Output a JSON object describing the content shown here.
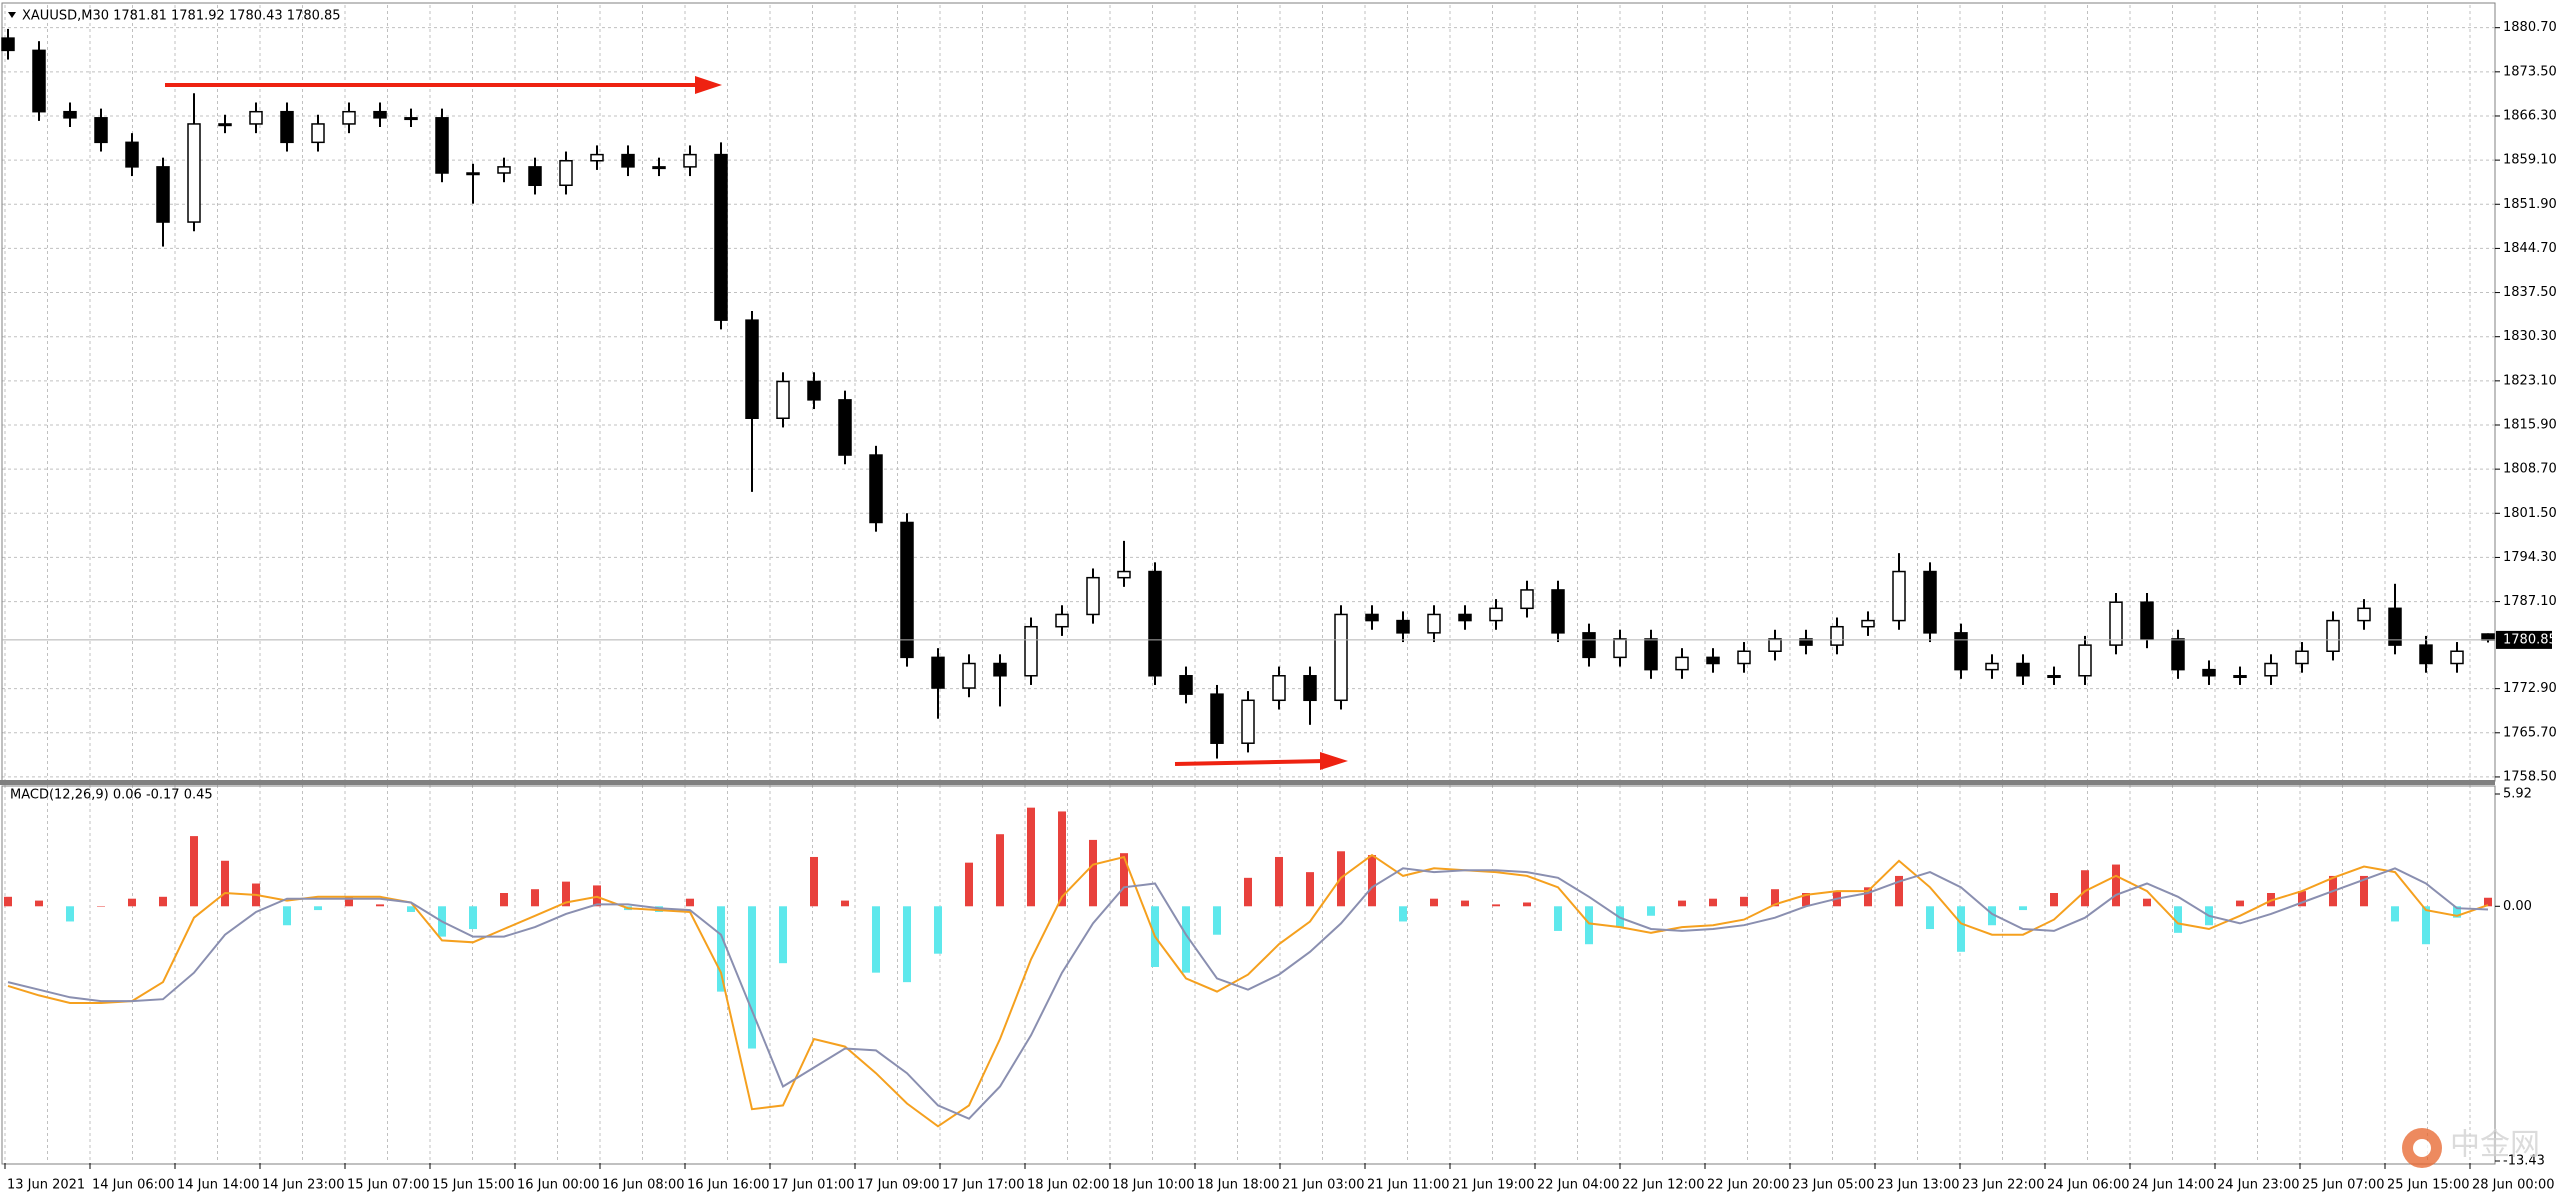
{
  "chart_data": [
    {
      "type": "candlestick",
      "title": "XAUUSD,M30  1781.81 1781.92 1780.43 1780.85",
      "candle_color": "#000000",
      "bull_fill": "#ffffff",
      "open": [
        1879,
        1877,
        1867,
        1866,
        1862,
        1858,
        1849,
        1865,
        1865,
        1867,
        1862,
        1865,
        1867,
        1866,
        1866,
        1857,
        1857,
        1858,
        1855,
        1859,
        1860,
        1858,
        1858,
        1860,
        1833,
        1817,
        1823,
        1820,
        1811,
        1800,
        1778,
        1773,
        1777,
        1775,
        1783,
        1785,
        1791,
        1792,
        1775,
        1772,
        1764,
        1771,
        1775,
        1771,
        1785,
        1784,
        1782,
        1785,
        1784,
        1786,
        1789,
        1782,
        1778,
        1781,
        1776,
        1778,
        1777,
        1779,
        1781,
        1780,
        1783,
        1784,
        1792,
        1782,
        1776,
        1777,
        1775,
        1775,
        1780,
        1787,
        1781,
        1776,
        1775,
        1775,
        1777,
        1779,
        1784,
        1786,
        1780,
        1777,
        1781.81
      ],
      "high": [
        1880.5,
        1878.5,
        1868.5,
        1867.5,
        1863.5,
        1859.5,
        1870,
        1866.5,
        1868.5,
        1868.5,
        1866.5,
        1868.5,
        1868.5,
        1867.5,
        1867.5,
        1858.5,
        1859.5,
        1859.5,
        1860.5,
        1861.5,
        1861.5,
        1859.5,
        1861.5,
        1862,
        1834.5,
        1824.5,
        1824.5,
        1821.5,
        1812.5,
        1801.5,
        1779.5,
        1778.5,
        1778.5,
        1784.5,
        1786.5,
        1792.5,
        1797,
        1793.5,
        1776.5,
        1773.5,
        1772.5,
        1776.5,
        1776.5,
        1786.5,
        1786.5,
        1785.5,
        1786.5,
        1786.5,
        1787.5,
        1790.5,
        1790.5,
        1783.5,
        1782.5,
        1782.5,
        1779.5,
        1779.5,
        1780.5,
        1782.5,
        1782.5,
        1784.5,
        1785.5,
        1795,
        1793.5,
        1783.5,
        1778.5,
        1778.5,
        1776.5,
        1781.5,
        1788.5,
        1788.5,
        1782.5,
        1777.5,
        1776.5,
        1778.5,
        1780.5,
        1785.5,
        1787.5,
        1790,
        1781.5,
        1780.5,
        1781.92
      ],
      "low": [
        1875.5,
        1865.5,
        1864.5,
        1860.5,
        1856.5,
        1845,
        1847.5,
        1863.5,
        1863.5,
        1860.5,
        1860.5,
        1863.5,
        1864.5,
        1864.5,
        1855.5,
        1852,
        1855.5,
        1853.5,
        1853.5,
        1857.5,
        1856.5,
        1856.5,
        1856.5,
        1831.5,
        1805,
        1815.5,
        1818.5,
        1809.5,
        1798.5,
        1776.5,
        1768,
        1771.5,
        1770,
        1773.5,
        1781.5,
        1783.5,
        1789.5,
        1773.5,
        1770.5,
        1761.5,
        1762.5,
        1769.5,
        1767,
        1769.5,
        1782.5,
        1780.5,
        1780.5,
        1782.5,
        1782.5,
        1784.5,
        1780.5,
        1776.5,
        1776.5,
        1774.5,
        1774.5,
        1775.5,
        1775.5,
        1777.5,
        1778.5,
        1778.5,
        1781.5,
        1782.5,
        1780.5,
        1774.5,
        1774.5,
        1773.5,
        1773.5,
        1773.5,
        1778.5,
        1779.5,
        1774.5,
        1773.5,
        1773.5,
        1773.5,
        1775.5,
        1777.5,
        1782.5,
        1778.5,
        1775.5,
        1775.5,
        1780.43
      ],
      "close": [
        1877,
        1867,
        1866,
        1862,
        1858,
        1849,
        1865,
        1865,
        1867,
        1862,
        1865,
        1867,
        1866,
        1866,
        1857,
        1857,
        1858,
        1855,
        1859,
        1860,
        1858,
        1858,
        1860,
        1833,
        1817,
        1823,
        1820,
        1811,
        1800,
        1778,
        1773,
        1777,
        1775,
        1783,
        1785,
        1791,
        1792,
        1775,
        1772,
        1764,
        1771,
        1775,
        1771,
        1785,
        1784,
        1782,
        1785,
        1784,
        1786,
        1789,
        1782,
        1778,
        1781,
        1776,
        1778,
        1777,
        1779,
        1781,
        1780,
        1783,
        1784,
        1792,
        1782,
        1776,
        1777,
        1775,
        1775,
        1780,
        1787,
        1781,
        1776,
        1775,
        1775,
        1777,
        1779,
        1784,
        1786,
        1780,
        1777,
        1779,
        1780.85
      ],
      "last_price": 1780.85,
      "ylim": [
        1758.0,
        1884.4
      ],
      "yticks": [
        {
          "value": 1880.7,
          "label": "1880.70"
        },
        {
          "value": 1873.5,
          "label": "1873.50"
        },
        {
          "value": 1866.3,
          "label": "1866.30"
        },
        {
          "value": 1859.1,
          "label": "1859.10"
        },
        {
          "value": 1851.9,
          "label": "1851.90"
        },
        {
          "value": 1844.7,
          "label": "1844.70"
        },
        {
          "value": 1837.5,
          "label": "1837.50"
        },
        {
          "value": 1830.3,
          "label": "1830.30"
        },
        {
          "value": 1823.1,
          "label": "1823.10"
        },
        {
          "value": 1815.9,
          "label": "1815.90"
        },
        {
          "value": 1808.7,
          "label": "1808.70"
        },
        {
          "value": 1801.5,
          "label": "1801.50"
        },
        {
          "value": 1794.3,
          "label": "1794.30"
        },
        {
          "value": 1787.1,
          "label": "1787.10"
        },
        {
          "value": 1772.9,
          "label": "1772.90"
        },
        {
          "value": 1765.7,
          "label": "1765.70"
        },
        {
          "value": 1758.5,
          "label": "1758.50"
        }
      ],
      "grid": true,
      "time_labels": [
        "13 Jun 2021",
        "14 Jun 06:00",
        "14 Jun 14:00",
        "14 Jun 23:00",
        "15 Jun 07:00",
        "15 Jun 15:00",
        "16 Jun 00:00",
        "16 Jun 08:00",
        "16 Jun 16:00",
        "17 Jun 01:00",
        "17 Jun 09:00",
        "17 Jun 17:00",
        "18 Jun 02:00",
        "18 Jun 10:00",
        "18 Jun 18:00",
        "21 Jun 03:00",
        "21 Jun 11:00",
        "21 Jun 19:00",
        "22 Jun 04:00",
        "22 Jun 12:00",
        "22 Jun 20:00",
        "23 Jun 05:00",
        "23 Jun 13:00",
        "23 Jun 22:00",
        "24 Jun 06:00",
        "24 Jun 14:00",
        "24 Jun 23:00",
        "25 Jun 07:00",
        "25 Jun 15:00",
        "28 Jun 00:00"
      ],
      "watermark": "中金网"
    },
    {
      "type": "macd",
      "title": "MACD(12,26,9) 0.06 -0.17 0.45",
      "histogram": [
        0.5,
        0.3,
        -0.8,
        0.0,
        0.4,
        0.5,
        3.7,
        2.4,
        1.2,
        -1.0,
        -0.2,
        0.5,
        0.1,
        -0.3,
        -1.6,
        -1.2,
        0.7,
        0.9,
        1.3,
        1.1,
        -0.2,
        -0.3,
        0.4,
        -4.5,
        -7.5,
        -3.0,
        2.6,
        0.3,
        -3.5,
        -4.0,
        -2.5,
        2.3,
        3.8,
        5.2,
        5.0,
        3.5,
        2.8,
        -3.2,
        -3.5,
        -1.5,
        1.5,
        2.6,
        1.8,
        2.9,
        2.7,
        -0.8,
        0.4,
        0.3,
        0.1,
        0.2,
        -1.3,
        -2.0,
        -1.1,
        -0.5,
        0.3,
        0.4,
        0.5,
        0.9,
        0.7,
        0.8,
        1.0,
        1.6,
        -1.2,
        -2.4,
        -1.0,
        -0.2,
        0.7,
        1.9,
        2.2,
        0.4,
        -1.4,
        -1.0,
        0.3,
        0.7,
        0.8,
        1.6,
        1.6,
        -0.8,
        -2.0,
        -0.6,
        0.45
      ],
      "up_color": "#e8413c",
      "down_color": "#5ee8ec",
      "series": [
        {
          "name": "MACD",
          "color": "#f5a01e",
          "values": [
            -4.2,
            -4.7,
            -5.1,
            -5.1,
            -5.0,
            -4.0,
            -0.6,
            0.7,
            0.6,
            0.3,
            0.5,
            0.5,
            0.5,
            0.2,
            -1.8,
            -1.9,
            -1.2,
            -0.5,
            0.2,
            0.5,
            -0.1,
            -0.2,
            -0.3,
            -3.5,
            -10.7,
            -10.5,
            -7.0,
            -7.4,
            -8.8,
            -10.4,
            -11.6,
            -10.5,
            -7.0,
            -2.8,
            0.5,
            2.2,
            2.6,
            -1.6,
            -3.8,
            -4.5,
            -3.6,
            -2.0,
            -0.8,
            1.5,
            2.7,
            1.6,
            2.0,
            1.9,
            1.8,
            1.6,
            1.0,
            -0.9,
            -1.1,
            -1.4,
            -1.1,
            -1.0,
            -0.7,
            0.1,
            0.6,
            0.8,
            0.8,
            2.4,
            1.0,
            -0.9,
            -1.5,
            -1.5,
            -0.7,
            0.8,
            1.6,
            0.8,
            -0.9,
            -1.2,
            -0.5,
            0.3,
            0.8,
            1.5,
            2.1,
            1.8,
            -0.2,
            -0.5,
            0.06
          ]
        },
        {
          "name": "Signal",
          "color": "#8a8fb0",
          "values": [
            -4.0,
            -4.4,
            -4.8,
            -5.0,
            -5.0,
            -4.9,
            -3.5,
            -1.5,
            -0.3,
            0.4,
            0.4,
            0.4,
            0.4,
            0.2,
            -0.8,
            -1.6,
            -1.6,
            -1.1,
            -0.4,
            0.1,
            0.1,
            -0.1,
            -0.2,
            -1.5,
            -5.5,
            -9.5,
            -8.5,
            -7.5,
            -7.6,
            -8.8,
            -10.5,
            -11.2,
            -9.5,
            -6.8,
            -3.5,
            -0.9,
            1.0,
            1.2,
            -1.5,
            -3.8,
            -4.4,
            -3.6,
            -2.4,
            -0.9,
            1.0,
            2.0,
            1.8,
            1.9,
            1.9,
            1.8,
            1.5,
            0.5,
            -0.6,
            -1.2,
            -1.3,
            -1.2,
            -1.0,
            -0.6,
            0.0,
            0.4,
            0.7,
            1.3,
            1.8,
            1.0,
            -0.4,
            -1.2,
            -1.3,
            -0.6,
            0.6,
            1.2,
            0.5,
            -0.5,
            -0.9,
            -0.4,
            0.2,
            0.8,
            1.4,
            2.0,
            1.2,
            -0.1,
            -0.17
          ]
        }
      ],
      "ylim": [
        -13.43,
        5.92
      ],
      "yticks": [
        5.92,
        {
          "value": 0,
          "label": "0.00"
        },
        {
          "value": -13.43,
          "label": "-13.43"
        }
      ]
    }
  ]
}
